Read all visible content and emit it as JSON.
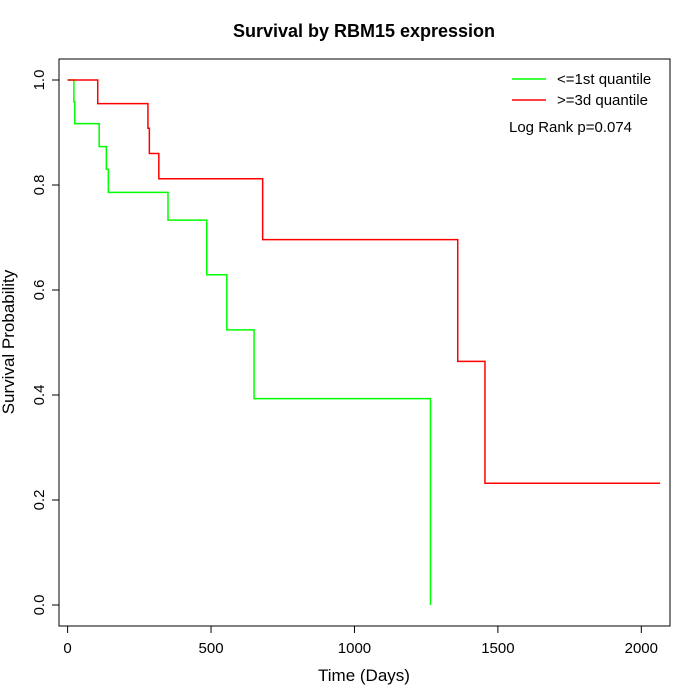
{
  "chart_data": {
    "type": "line",
    "title": "Survival by RBM15 expression",
    "xlabel": "Time (Days)",
    "ylabel": "Survival Probability",
    "xlim": [
      -30,
      2100
    ],
    "ylim": [
      -0.04,
      1.04
    ],
    "x_ticks": [
      0,
      500,
      1000,
      1500,
      2000
    ],
    "y_ticks": [
      0.0,
      0.2,
      0.4,
      0.6,
      0.8,
      1.0
    ],
    "x_tick_labels": [
      "0",
      "500",
      "1000",
      "1500",
      "2000"
    ],
    "y_tick_labels": [
      "0.0",
      "0.2",
      "0.4",
      "0.6",
      "0.8",
      "1.0"
    ],
    "grid": false,
    "legend_position": "top-right",
    "annotation": "Log Rank p=0.074",
    "series": [
      {
        "name": "<=1st quantile",
        "color": "#00ff00",
        "steps": [
          {
            "x": 0,
            "y": 1.0
          },
          {
            "x": 22,
            "y": 0.958
          },
          {
            "x": 25,
            "y": 0.917
          },
          {
            "x": 110,
            "y": 0.873
          },
          {
            "x": 135,
            "y": 0.83
          },
          {
            "x": 142,
            "y": 0.786
          },
          {
            "x": 350,
            "y": 0.733
          },
          {
            "x": 485,
            "y": 0.629
          },
          {
            "x": 555,
            "y": 0.524
          },
          {
            "x": 650,
            "y": 0.393
          },
          {
            "x": 1265,
            "y": 0.0
          }
        ],
        "end_x": 1265
      },
      {
        "name": ">=3d quantile",
        "color": "#ff0000",
        "steps": [
          {
            "x": 0,
            "y": 1.0
          },
          {
            "x": 105,
            "y": 0.955
          },
          {
            "x": 280,
            "y": 0.908
          },
          {
            "x": 285,
            "y": 0.86
          },
          {
            "x": 318,
            "y": 0.812
          },
          {
            "x": 680,
            "y": 0.696
          },
          {
            "x": 1360,
            "y": 0.464
          },
          {
            "x": 1455,
            "y": 0.232
          }
        ],
        "end_x": 2065
      }
    ]
  }
}
